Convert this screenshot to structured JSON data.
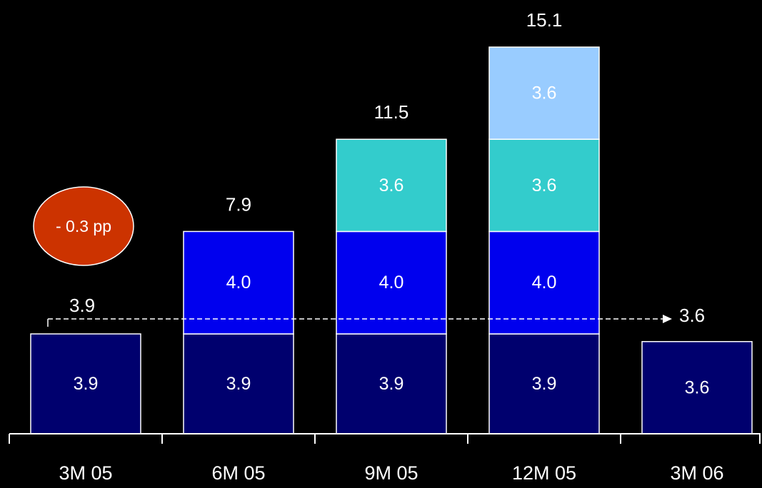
{
  "chart_data": {
    "type": "bar",
    "stacked": true,
    "title": "",
    "xlabel": "",
    "ylabel": "",
    "categories": [
      "3M 05",
      "6M 05",
      "9M 05",
      "12M 05",
      "3M 06"
    ],
    "series": [
      {
        "color": "#00006e",
        "values": [
          3.9,
          3.9,
          3.9,
          3.9,
          3.6
        ]
      },
      {
        "color": "#0000ee",
        "values": [
          null,
          4.0,
          4.0,
          4.0,
          null
        ]
      },
      {
        "color": "#33cccc",
        "values": [
          null,
          null,
          3.6,
          3.6,
          null
        ]
      },
      {
        "color": "#99ccff",
        "values": [
          null,
          null,
          null,
          3.6,
          null
        ]
      }
    ],
    "segment_labels": [
      [
        "3.9",
        null,
        null,
        null
      ],
      [
        "3.9",
        "4.0",
        null,
        null
      ],
      [
        "3.9",
        "4.0",
        "3.6",
        null
      ],
      [
        "3.9",
        "4.0",
        "3.6",
        "3.6"
      ],
      [
        "3.6",
        null,
        null,
        null
      ]
    ],
    "totals": [
      null,
      7.9,
      11.5,
      15.1,
      null
    ],
    "total_labels": [
      null,
      "7.9",
      "11.5",
      "15.1",
      null
    ],
    "annotations": {
      "start_label": "3.9",
      "end_label": "3.6",
      "badge_text": "- 0.3 pp",
      "badge_color": "#cc3300"
    },
    "ylim": [
      0,
      15.1
    ],
    "grid": false,
    "legend": "none"
  }
}
